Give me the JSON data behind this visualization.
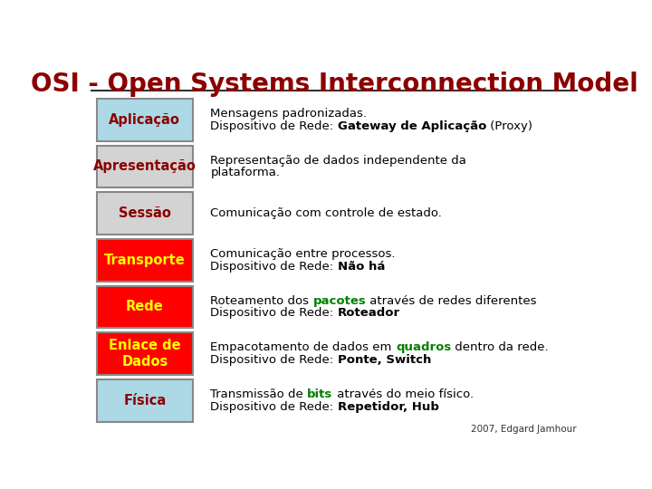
{
  "title": "OSI - Open Systems Interconnection Model",
  "title_color": "#8B0000",
  "bg_color": "#FFFFFF",
  "footer": "2007, Edgard Jamhour",
  "layers": [
    {
      "label": "Aplicação",
      "label_color": "#8B0000",
      "box_facecolor": "#ADD8E6",
      "box_edgecolor": "#888888",
      "description_parts": [
        {
          "text": "Mensagens padronizadas.\nDispositivo de Rede: ",
          "color": "#000000",
          "bold": false
        },
        {
          "text": "Gateway de Aplicação",
          "color": "#000000",
          "bold": true
        },
        {
          "text": " (Proxy)",
          "color": "#000000",
          "bold": false
        }
      ]
    },
    {
      "label": "Apresentação",
      "label_color": "#8B0000",
      "box_facecolor": "#D3D3D3",
      "box_edgecolor": "#888888",
      "description_parts": [
        {
          "text": "Representação de dados independente da\nplataforma.",
          "color": "#000000",
          "bold": false
        }
      ]
    },
    {
      "label": "Sessão",
      "label_color": "#8B0000",
      "box_facecolor": "#D3D3D3",
      "box_edgecolor": "#888888",
      "description_parts": [
        {
          "text": "Comunicação com controle de estado.",
          "color": "#000000",
          "bold": false
        }
      ]
    },
    {
      "label": "Transporte",
      "label_color": "#FFFF00",
      "box_facecolor": "#FF0000",
      "box_edgecolor": "#888888",
      "description_parts": [
        {
          "text": "Comunicação entre processos.\nDispositivo de Rede: ",
          "color": "#000000",
          "bold": false
        },
        {
          "text": "Não há",
          "color": "#000000",
          "bold": true
        }
      ]
    },
    {
      "label": "Rede",
      "label_color": "#FFFF00",
      "box_facecolor": "#FF0000",
      "box_edgecolor": "#888888",
      "description_parts": [
        {
          "text": "Roteamento dos ",
          "color": "#000000",
          "bold": false
        },
        {
          "text": "pacotes",
          "color": "#008000",
          "bold": true
        },
        {
          "text": " através de redes diferentes\nDispositivo de Rede: ",
          "color": "#000000",
          "bold": false
        },
        {
          "text": "Roteador",
          "color": "#000000",
          "bold": true
        }
      ]
    },
    {
      "label": "Enlace de\nDados",
      "label_color": "#FFFF00",
      "box_facecolor": "#FF0000",
      "box_edgecolor": "#888888",
      "description_parts": [
        {
          "text": "Empacotamento de dados em ",
          "color": "#000000",
          "bold": false
        },
        {
          "text": "quadros",
          "color": "#008000",
          "bold": true
        },
        {
          "text": " dentro da rede.\nDispositivo de Rede: ",
          "color": "#000000",
          "bold": false
        },
        {
          "text": "Ponte, Switch",
          "color": "#000000",
          "bold": true
        }
      ]
    },
    {
      "label": "Física",
      "label_color": "#8B0000",
      "box_facecolor": "#ADD8E6",
      "box_edgecolor": "#888888",
      "description_parts": [
        {
          "text": "Transmissão de ",
          "color": "#000000",
          "bold": false
        },
        {
          "text": "bits",
          "color": "#008000",
          "bold": true
        },
        {
          "text": " através do meio físico.\nDispositivo de Rede: ",
          "color": "#000000",
          "bold": false
        },
        {
          "text": "Repetidor, Hub",
          "color": "#000000",
          "bold": true
        }
      ]
    }
  ]
}
